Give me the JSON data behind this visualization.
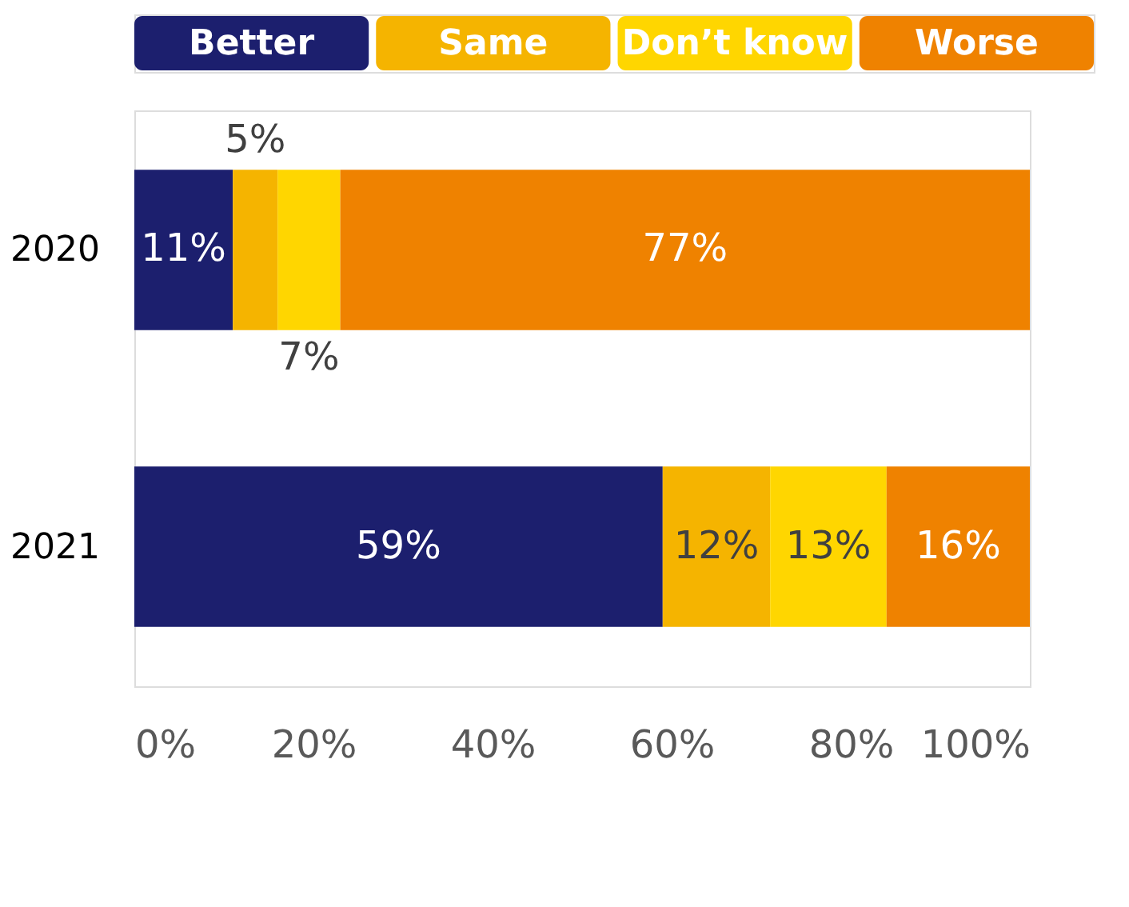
{
  "chart_data": {
    "type": "bar",
    "orientation": "horizontal",
    "stacked": true,
    "categories": [
      "2020",
      "2021"
    ],
    "series": [
      {
        "name": "Better",
        "color": "#1c1f6e",
        "values": [
          11,
          59
        ]
      },
      {
        "name": "Same",
        "color": "#f5b400",
        "values": [
          5,
          12
        ]
      },
      {
        "name": "Don’t know",
        "color": "#ffd600",
        "values": [
          7,
          13
        ]
      },
      {
        "name": "Worse",
        "color": "#ef8200",
        "values": [
          77,
          16
        ]
      }
    ],
    "xlim": [
      0,
      100
    ],
    "xticks": [
      {
        "value": 0,
        "label": "0%"
      },
      {
        "value": 20,
        "label": "20%"
      },
      {
        "value": 40,
        "label": "40%"
      },
      {
        "value": 60,
        "label": "60%"
      },
      {
        "value": 80,
        "label": "80%"
      },
      {
        "value": 100,
        "label": "100%"
      }
    ],
    "value_labels": [
      [
        "11%",
        "59%"
      ],
      [
        "5%",
        "12%"
      ],
      [
        "7%",
        "13%"
      ],
      [
        "77%",
        "16%"
      ]
    ],
    "legend": "top",
    "grid": false
  }
}
